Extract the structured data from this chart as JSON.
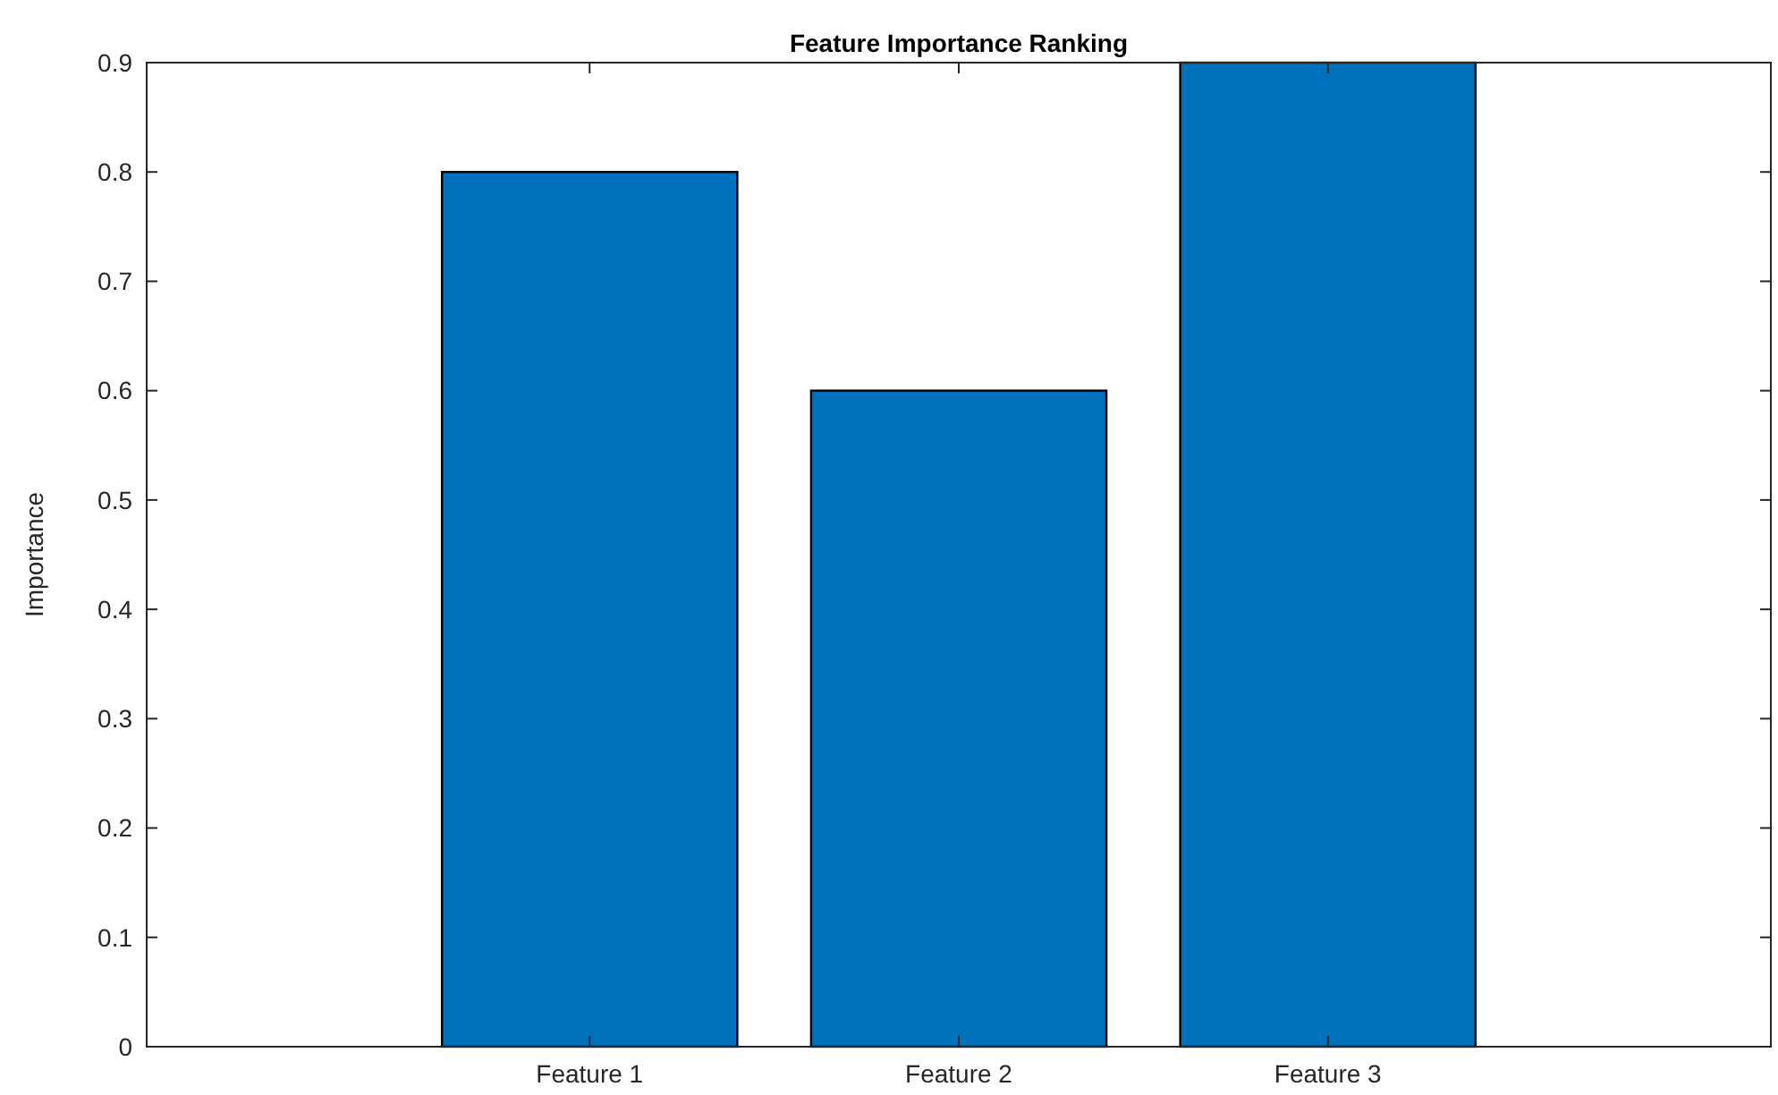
{
  "chart_data": {
    "type": "bar",
    "title": "Feature Importance Ranking",
    "ylabel": "Importance",
    "categories": [
      "Feature 1",
      "Feature 2",
      "Feature 3"
    ],
    "values": [
      0.8,
      0.6,
      0.9
    ],
    "color": "#0072bd",
    "ylim": [
      0,
      0.9
    ],
    "yticks": [
      0,
      0.1,
      0.2,
      0.3,
      0.4,
      0.5,
      0.6,
      0.7,
      0.8,
      0.9
    ],
    "grid": false
  }
}
